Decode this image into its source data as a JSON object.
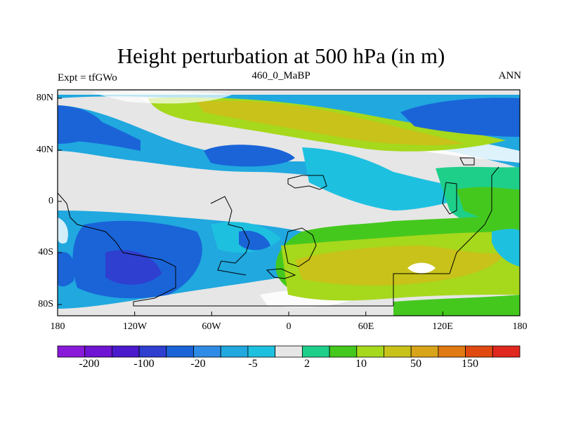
{
  "title": "Height perturbation at 500 hPa (in m)",
  "subtitle_left": "Expt = tfGWo",
  "subtitle_center": "460_0_MaBP",
  "subtitle_right": "ANN",
  "y_ticks": [
    "80N",
    "40N",
    "0",
    "40S",
    "80S"
  ],
  "x_ticks": [
    "180",
    "120W",
    "60W",
    "0",
    "60E",
    "120E",
    "180"
  ],
  "colorbar": {
    "colors": [
      "#8a1ad9",
      "#6e14d2",
      "#4a1acc",
      "#2f3fd0",
      "#1a64d8",
      "#2e8ce6",
      "#20a8df",
      "#1ec0e0",
      "#e6e6e6",
      "#1ecf8a",
      "#45c81e",
      "#a6d81c",
      "#c8c21a",
      "#d8a41a",
      "#e07a12",
      "#e04a10",
      "#e0281e"
    ],
    "labels": [
      "-200",
      "-100",
      "-20",
      "-5",
      "2",
      "10",
      "50",
      "150"
    ]
  }
}
